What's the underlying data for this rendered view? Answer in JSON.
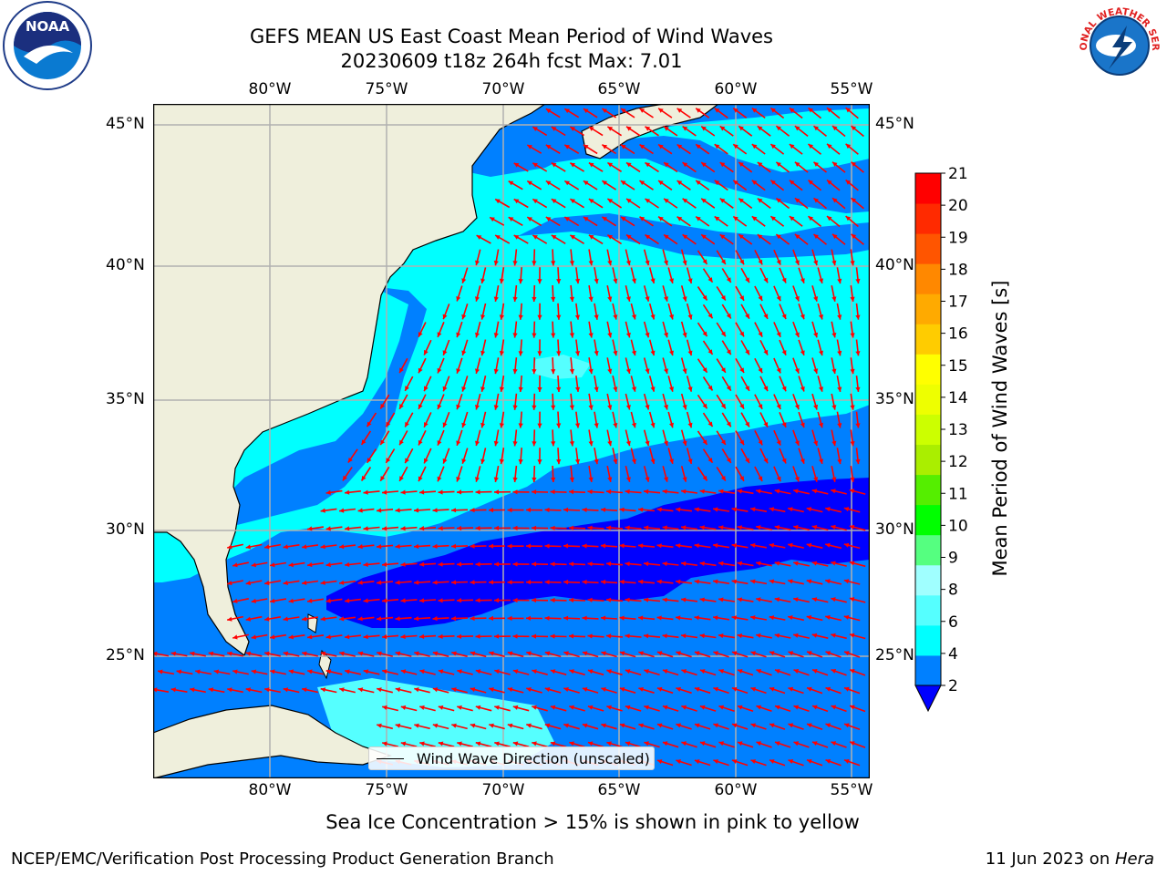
{
  "title": {
    "line1": "GEFS MEAN US East Coast Mean Period of Wind Waves",
    "line2": "20230609 t18z 264h fcst   Max: 7.01"
  },
  "logos": {
    "left": {
      "name": "noaa-logo",
      "text": "NOAA"
    },
    "right": {
      "name": "nws-logo",
      "text": "NATIONAL WEATHER SERVICE"
    }
  },
  "axes": {
    "x_ticks": [
      "80°W",
      "75°W",
      "70°W",
      "65°W",
      "60°W",
      "55°W"
    ],
    "y_ticks": [
      "45°N",
      "40°N",
      "35°N",
      "30°N",
      "25°N"
    ]
  },
  "map": {
    "region": "US East Coast / Western North Atlantic",
    "lon_range": [
      -85,
      -54.3
    ],
    "lat_range": [
      20.5,
      46
    ],
    "colors": {
      "land": "#efefdc",
      "coast": "#000000",
      "grid": "#b0b0b0",
      "arrow": "#ff0000"
    }
  },
  "legend": {
    "label": "Wind Wave Direction (unscaled)"
  },
  "colorbar": {
    "label": "Mean Period of Wind Waves [s]",
    "ticks": [
      "2",
      "4",
      "6",
      "8",
      "9",
      "10",
      "11",
      "12",
      "13",
      "14",
      "15",
      "16",
      "17",
      "18",
      "19",
      "20",
      "21"
    ],
    "colors": [
      "#0080ff",
      "#00ffff",
      "#55ffff",
      "#a0ffff",
      "#55ff80",
      "#00ff00",
      "#55ee00",
      "#aaee00",
      "#ccff00",
      "#eeff00",
      "#ffff00",
      "#ffcc00",
      "#ffaa00",
      "#ff8800",
      "#ff5500",
      "#ff2a00",
      "#ff0000"
    ],
    "underflow_color": "#0000ff"
  },
  "notes": {
    "sea_ice": "Sea Ice Concentration > 15% is shown in pink to yellow"
  },
  "footer": {
    "left": "NCEP/EMC/Verification Post Processing Product Generation Branch",
    "date": "11 Jun 2023 on ",
    "machine": "Hera"
  }
}
